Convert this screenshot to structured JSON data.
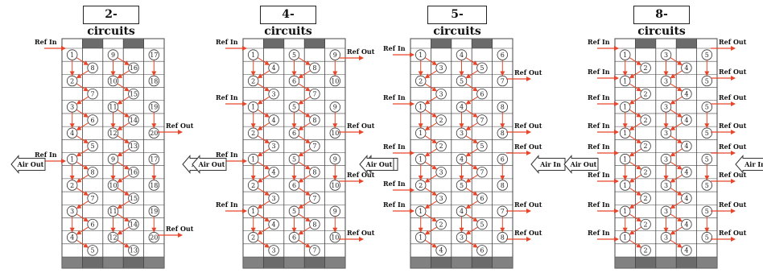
{
  "colors": {
    "grid": "#444444",
    "header_block": "#6b6b6b",
    "refrigerant_arrow": "#e8462a",
    "air_arrow_fill": "#ffffff",
    "air_arrow_stroke": "#333333"
  },
  "panels": [
    {
      "title": "2-circuits",
      "inlet_label": "Ref In",
      "outlet_label": "Ref Out",
      "air_in_label": "Air In",
      "air_out_label": "Air Out",
      "circuit_count": 2,
      "tube_rows": [
        [
          "1",
          "",
          "9",
          "",
          "17"
        ],
        [
          "",
          "8",
          "",
          "16",
          ""
        ],
        [
          "2",
          "",
          "10",
          "",
          "18"
        ],
        [
          "",
          "7",
          "",
          "15",
          ""
        ],
        [
          "3",
          "",
          "11",
          "",
          "19"
        ],
        [
          "",
          "6",
          "",
          "14",
          ""
        ],
        [
          "4",
          "",
          "12",
          "",
          "20"
        ],
        [
          "",
          "5",
          "",
          "13",
          ""
        ],
        [
          "1",
          "",
          "9",
          "",
          "17"
        ],
        [
          "",
          "8",
          "",
          "16",
          ""
        ],
        [
          "2",
          "",
          "10",
          "",
          "18"
        ],
        [
          "",
          "7",
          "",
          "15",
          ""
        ],
        [
          "3",
          "",
          "11",
          "",
          "19"
        ],
        [
          "",
          "6",
          "",
          "14",
          ""
        ],
        [
          "4",
          "",
          "12",
          "",
          "20"
        ],
        [
          "",
          "5",
          "",
          "13",
          ""
        ]
      ]
    },
    {
      "title": "4-circuits",
      "inlet_label": "Ref In",
      "outlet_label": "Ref Out",
      "air_in_label": "Air In",
      "air_out_label": "Air Out",
      "circuit_count": 4,
      "tube_rows": [
        [
          "1",
          "",
          "5",
          "",
          "9"
        ],
        [
          "",
          "4",
          "",
          "8",
          ""
        ],
        [
          "2",
          "",
          "6",
          "",
          "10"
        ],
        [
          "",
          "3",
          "",
          "7",
          ""
        ],
        [
          "1",
          "",
          "5",
          "",
          "9"
        ],
        [
          "",
          "4",
          "",
          "8",
          ""
        ],
        [
          "2",
          "",
          "6",
          "",
          "10"
        ],
        [
          "",
          "3",
          "",
          "7",
          ""
        ],
        [
          "1",
          "",
          "5",
          "",
          "9"
        ],
        [
          "",
          "4",
          "",
          "8",
          ""
        ],
        [
          "2",
          "",
          "6",
          "",
          "10"
        ],
        [
          "",
          "3",
          "",
          "7",
          ""
        ],
        [
          "1",
          "",
          "5",
          "",
          "9"
        ],
        [
          "",
          "4",
          "",
          "8",
          ""
        ],
        [
          "2",
          "",
          "6",
          "",
          "10"
        ],
        [
          "",
          "3",
          "",
          "7",
          ""
        ]
      ]
    },
    {
      "title": "5-circuits",
      "inlet_label": "Ref In",
      "outlet_label": "Ref Out",
      "air_in_label": "Air In",
      "air_out_label": "Air Out",
      "circuit_count": 5,
      "tube_rows": [
        [
          "1",
          "",
          "4",
          "",
          "6"
        ],
        [
          "",
          "3",
          "",
          "5",
          ""
        ],
        [
          "2",
          "",
          "5",
          "",
          "7"
        ],
        [
          "",
          "3",
          "",
          "6",
          ""
        ],
        [
          "1",
          "",
          "4",
          "",
          "8"
        ],
        [
          "",
          "2",
          "",
          "7",
          ""
        ],
        [
          "1",
          "",
          "3",
          "",
          "8"
        ],
        [
          "",
          "2",
          "",
          "5",
          ""
        ],
        [
          "1",
          "",
          "4",
          "",
          "6"
        ],
        [
          "",
          "3",
          "",
          "7",
          ""
        ],
        [
          "2",
          "",
          "5",
          "",
          "8"
        ],
        [
          "",
          "3",
          "",
          "6",
          ""
        ],
        [
          "1",
          "",
          "4",
          "",
          "7"
        ],
        [
          "",
          "2",
          "",
          "5",
          ""
        ],
        [
          "1",
          "",
          "3",
          "",
          "8"
        ],
        [
          "",
          "4",
          "",
          "6",
          ""
        ]
      ]
    },
    {
      "title": "8-circuits",
      "inlet_label": "Ref In",
      "outlet_label": "Ref Out",
      "air_in_label": "Air In",
      "air_out_label": "Air Out",
      "circuit_count": 8,
      "tube_rows": [
        [
          "1",
          "",
          "3",
          "",
          "5"
        ],
        [
          "",
          "2",
          "",
          "4",
          ""
        ],
        [
          "1",
          "",
          "3",
          "",
          "5"
        ],
        [
          "",
          "2",
          "",
          "4",
          ""
        ],
        [
          "1",
          "",
          "3",
          "",
          "5"
        ],
        [
          "",
          "2",
          "",
          "4",
          ""
        ],
        [
          "1",
          "",
          "3",
          "",
          "5"
        ],
        [
          "",
          "2",
          "",
          "4",
          ""
        ],
        [
          "1",
          "",
          "3",
          "",
          "5"
        ],
        [
          "",
          "2",
          "",
          "4",
          ""
        ],
        [
          "1",
          "",
          "3",
          "",
          "5"
        ],
        [
          "",
          "2",
          "",
          "4",
          ""
        ],
        [
          "1",
          "",
          "3",
          "",
          "5"
        ],
        [
          "",
          "2",
          "",
          "4",
          ""
        ],
        [
          "1",
          "",
          "3",
          "",
          "5"
        ],
        [
          "",
          "2",
          "",
          "4",
          ""
        ]
      ]
    }
  ]
}
